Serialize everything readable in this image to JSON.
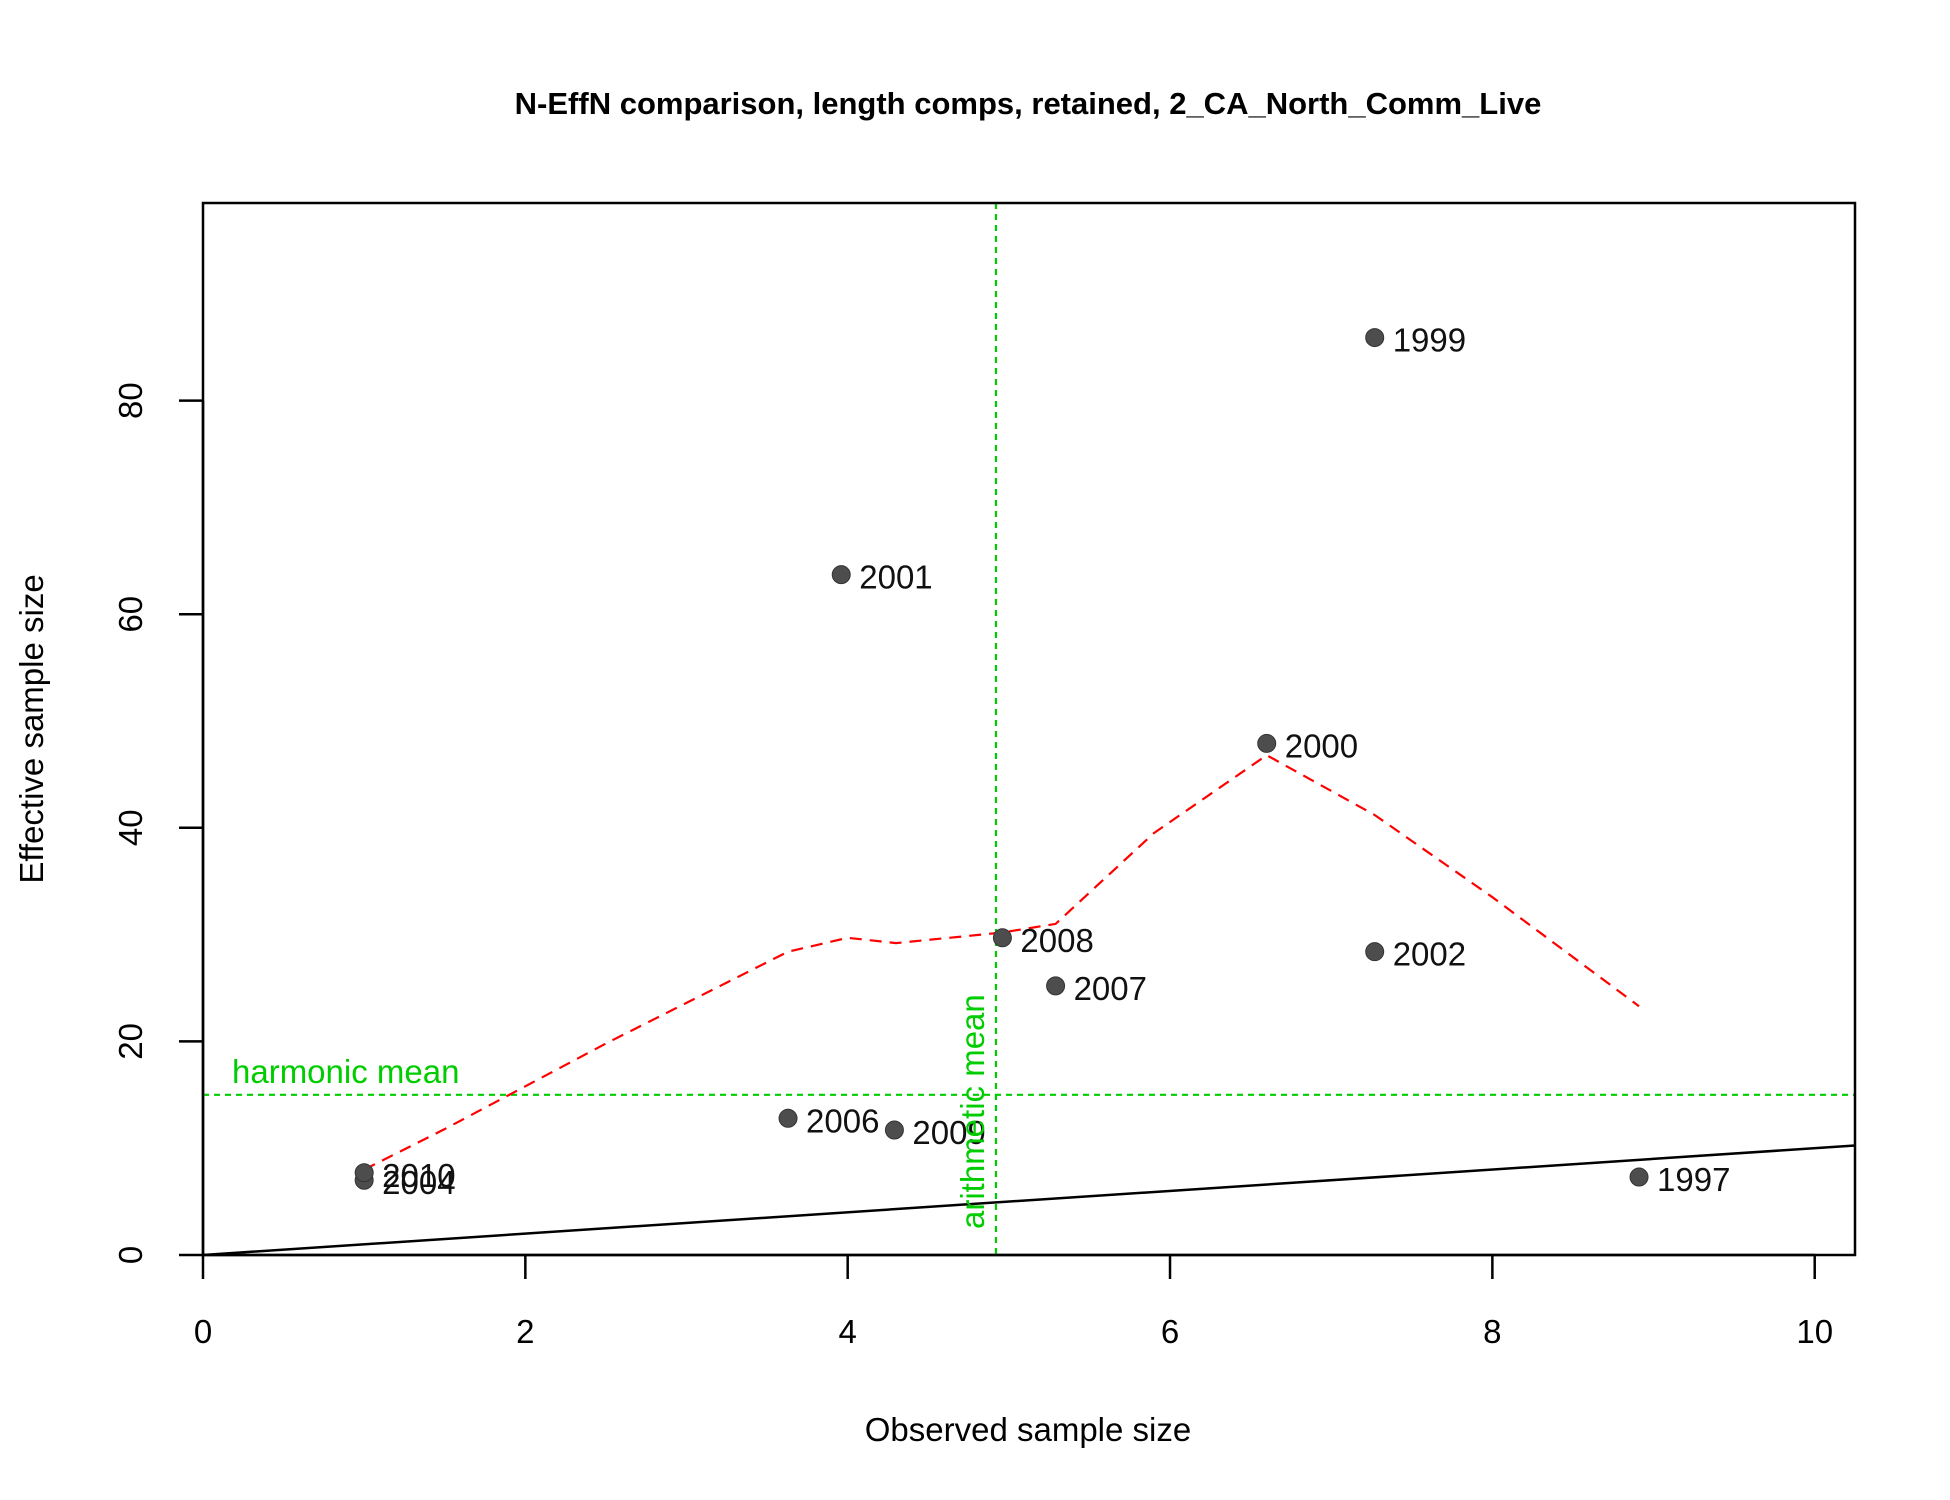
{
  "chart_data": {
    "type": "scatter",
    "title": "N-EffN comparison, length comps, retained, 2_CA_North_Comm_Live",
    "xlabel": "Observed sample size",
    "ylabel": "Effective sample size",
    "xlim": [
      0,
      10.25
    ],
    "ylim": [
      0,
      98.5
    ],
    "xticks": [
      0,
      2,
      4,
      6,
      8,
      10
    ],
    "yticks": [
      0,
      20,
      40,
      60,
      80
    ],
    "grid": false,
    "points": [
      {
        "label": "1997",
        "x": 8.91,
        "y": 7.3
      },
      {
        "label": "1999",
        "x": 7.27,
        "y": 85.9
      },
      {
        "label": "2000",
        "x": 6.6,
        "y": 47.9
      },
      {
        "label": "2001",
        "x": 3.96,
        "y": 63.7
      },
      {
        "label": "2002",
        "x": 7.27,
        "y": 28.4
      },
      {
        "label": "2004",
        "x": 1.0,
        "y": 7.0
      },
      {
        "label": "2006",
        "x": 3.63,
        "y": 12.8
      },
      {
        "label": "2007",
        "x": 5.29,
        "y": 25.2
      },
      {
        "label": "2008",
        "x": 4.96,
        "y": 29.7
      },
      {
        "label": "2009",
        "x": 4.29,
        "y": 11.7
      },
      {
        "label": "2010",
        "x": 1.0,
        "y": 7.7
      }
    ],
    "smoother": {
      "x": [
        1.0,
        1.5,
        2.0,
        2.5,
        3.0,
        3.63,
        4.0,
        4.3,
        4.96,
        5.29,
        5.9,
        6.6,
        7.27,
        8.0,
        8.91
      ],
      "y": [
        8.0,
        11.8,
        15.8,
        19.8,
        23.6,
        28.4,
        29.7,
        29.2,
        30.2,
        31.0,
        39.5,
        46.8,
        41.2,
        33.5,
        23.3
      ]
    },
    "identity_line": {
      "slope": 1,
      "intercept": 0
    },
    "harmonic_mean": {
      "value": 15.0,
      "label": "harmonic mean"
    },
    "arithmetic_mean": {
      "value": 4.92,
      "label": "arithmetic mean"
    },
    "colors": {
      "points": "#4d4d4d",
      "smoother": "#ff0000",
      "reference": "#00cd00",
      "identity": "#000000"
    }
  }
}
